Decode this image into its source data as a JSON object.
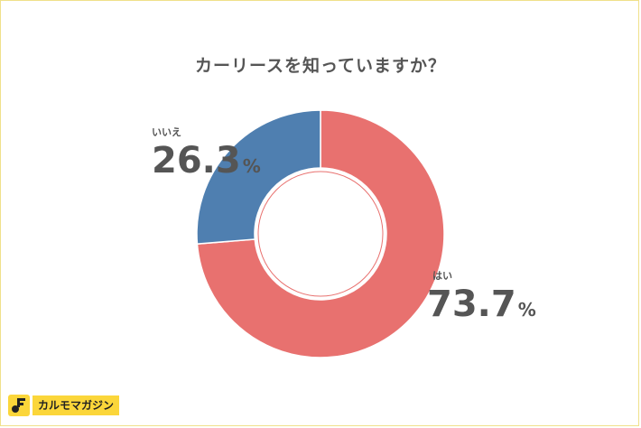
{
  "chart_data": {
    "type": "pie",
    "title": "カーリースを知っていますか？",
    "categories": [
      "はい",
      "いいえ"
    ],
    "values": [
      73.7,
      26.3
    ],
    "unit": "%",
    "colors": [
      "#e8716f",
      "#4f7fb0"
    ],
    "donut": true
  },
  "labels": {
    "yes": {
      "name": "はい",
      "value": "73.7",
      "unit": "%"
    },
    "no": {
      "name": "いいえ",
      "value": "26.3",
      "unit": "%"
    }
  },
  "brand": {
    "name": "カルモマガジン",
    "color": "#fbd63a"
  }
}
